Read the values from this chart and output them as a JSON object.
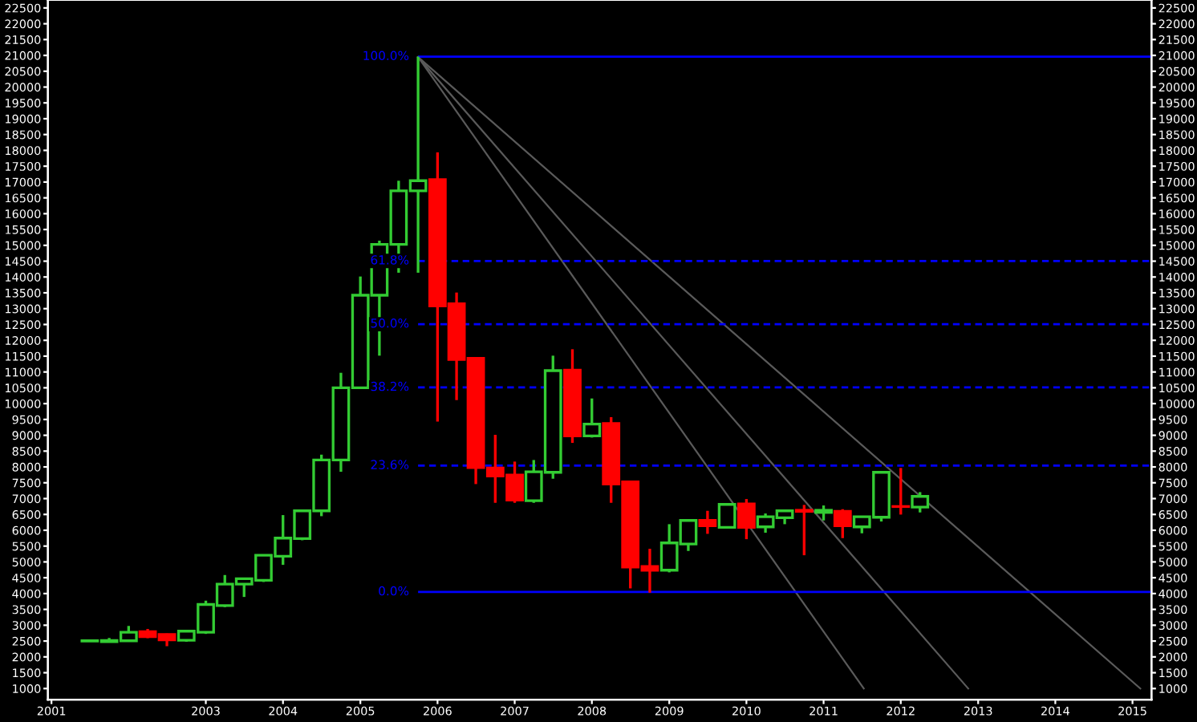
{
  "chart_data": {
    "type": "candlestick",
    "x": [
      "2001-07",
      "2001-10",
      "2002-01",
      "2002-04",
      "2002-07",
      "2002-10",
      "2003-01",
      "2003-04",
      "2003-07",
      "2003-10",
      "2004-01",
      "2004-04",
      "2004-07",
      "2004-10",
      "2005-01",
      "2005-04",
      "2005-07",
      "2005-10",
      "2006-01",
      "2006-04",
      "2006-07",
      "2006-10",
      "2007-01",
      "2007-04",
      "2007-07",
      "2007-10",
      "2008-01",
      "2008-04",
      "2008-07",
      "2008-10",
      "2009-01",
      "2009-04",
      "2009-07",
      "2009-10",
      "2010-01",
      "2010-04",
      "2010-07",
      "2010-10",
      "2011-01",
      "2011-04",
      "2011-07",
      "2011-10",
      "2012-01",
      "2012-04"
    ],
    "ohlc": [
      [
        2500,
        2520,
        2490,
        2510
      ],
      [
        2480,
        2600,
        2470,
        2520
      ],
      [
        2508,
        2980,
        2500,
        2778
      ],
      [
        2795,
        2880,
        2590,
        2642
      ],
      [
        2710,
        2740,
        2340,
        2540
      ],
      [
        2525,
        2845,
        2475,
        2812
      ],
      [
        2778,
        3775,
        2727,
        3656
      ],
      [
        3622,
        4586,
        3572,
        4299
      ],
      [
        4299,
        4501,
        3893,
        4468
      ],
      [
        4417,
        5211,
        4366,
        5211
      ],
      [
        5177,
        6479,
        4907,
        5752
      ],
      [
        5735,
        6614,
        5684,
        6614
      ],
      [
        6614,
        8388,
        6445,
        8219
      ],
      [
        8219,
        10974,
        7847,
        10501
      ],
      [
        10501,
        14016,
        10501,
        13424
      ],
      [
        13424,
        15148,
        11515,
        15030
      ],
      [
        15030,
        17041,
        14135,
        16720
      ],
      [
        16720,
        20962,
        14135,
        17041
      ],
      [
        17075,
        17937,
        9436,
        13087
      ],
      [
        13154,
        13509,
        10112,
        11397
      ],
      [
        11430,
        11430,
        7459,
        7983
      ],
      [
        7966,
        9014,
        6867,
        7712
      ],
      [
        7746,
        8169,
        6867,
        6952
      ],
      [
        6935,
        8219,
        6867,
        7847
      ],
      [
        7830,
        11515,
        7628,
        11042
      ],
      [
        11059,
        11718,
        8760,
        8980
      ],
      [
        8980,
        10163,
        8929,
        9352
      ],
      [
        9369,
        9572,
        6867,
        7459
      ],
      [
        7527,
        7527,
        4164,
        4840
      ],
      [
        4857,
        5414,
        4028,
        4738
      ],
      [
        4738,
        6192,
        4671,
        5600
      ],
      [
        5566,
        6327,
        5346,
        6310
      ],
      [
        6310,
        6614,
        5887,
        6141
      ],
      [
        6090,
        6817,
        6090,
        6817
      ],
      [
        6834,
        6986,
        5718,
        6090
      ],
      [
        6107,
        6530,
        5921,
        6428
      ],
      [
        6394,
        6614,
        6192,
        6614
      ],
      [
        6631,
        6800,
        5211,
        6597
      ],
      [
        6563,
        6783,
        6310,
        6631
      ],
      [
        6597,
        6665,
        5752,
        6141
      ],
      [
        6107,
        6428,
        5904,
        6428
      ],
      [
        6411,
        7831,
        6276,
        7831
      ],
      [
        6749,
        7966,
        6496,
        6749
      ],
      [
        6732,
        7205,
        6563,
        7070
      ]
    ],
    "colors": [
      "#33cc33",
      "#33cc33",
      "#33cc33",
      "#ff0000",
      "#ff0000",
      "#33cc33",
      "#33cc33",
      "#33cc33",
      "#33cc33",
      "#33cc33",
      "#33cc33",
      "#33cc33",
      "#33cc33",
      "#33cc33",
      "#33cc33",
      "#33cc33",
      "#33cc33",
      "#33cc33",
      "#ff0000",
      "#ff0000",
      "#ff0000",
      "#ff0000",
      "#ff0000",
      "#33cc33",
      "#33cc33",
      "#ff0000",
      "#33cc33",
      "#ff0000",
      "#ff0000",
      "#ff0000",
      "#33cc33",
      "#33cc33",
      "#ff0000",
      "#33cc33",
      "#ff0000",
      "#33cc33",
      "#33cc33",
      "#ff0000",
      "#33cc33",
      "#ff0000",
      "#33cc33",
      "#33cc33",
      "#ff0000",
      "#33cc33"
    ],
    "series": [
      {
        "type": "line",
        "color": "#5a5a5a",
        "x": [
          "2005-10",
          "2011-07-10"
        ],
        "values": [
          20950,
          1000
        ]
      },
      {
        "type": "line",
        "color": "#5a5a5a",
        "x": [
          "2005-10",
          "2012-11-15"
        ],
        "values": [
          20950,
          1000
        ]
      },
      {
        "type": "line",
        "color": "#5a5a5a",
        "x": [
          "2005-10",
          "2015-02-07"
        ],
        "values": [
          20950,
          1000
        ]
      }
    ],
    "ref_lines": [
      {
        "axis": "y",
        "value": 20962,
        "color": "#0000ff",
        "line_style": "solid"
      },
      {
        "axis": "y",
        "value": 14507,
        "color": "#0000ff",
        "line_style": "dashed"
      },
      {
        "axis": "y",
        "value": 12510,
        "color": "#0000ff",
        "line_style": "dashed"
      },
      {
        "axis": "y",
        "value": 10513,
        "color": "#0000ff",
        "line_style": "dashed"
      },
      {
        "axis": "y",
        "value": 8040,
        "color": "#0000ff",
        "line_style": "dashed"
      },
      {
        "axis": "y",
        "value": 4050,
        "color": "#0000ff",
        "line_style": "solid"
      }
    ],
    "annotations": [
      {
        "text": "100.0%",
        "x": "2005-10",
        "y": 20962
      },
      {
        "text": "61.8%",
        "x": "2005-10",
        "y": 14507
      },
      {
        "text": "50.0%",
        "x": "2005-10",
        "y": 12510
      },
      {
        "text": "38.2%",
        "x": "2005-10",
        "y": 10513
      },
      {
        "text": "23.6%",
        "x": "2005-10",
        "y": 8040
      },
      {
        "text": "0.0%",
        "x": "2005-10",
        "y": 4050
      }
    ],
    "xlim": [
      "2000-12-15",
      "2015-04-01"
    ],
    "xticks": [
      "2001",
      "2003",
      "2004",
      "2005",
      "2006",
      "2007",
      "2008",
      "2009",
      "2010",
      "2011",
      "2012",
      "2013",
      "2014",
      "2015"
    ],
    "ylim": [
      650,
      22750
    ],
    "yticks": [
      1000,
      1500,
      2000,
      2500,
      3000,
      3500,
      4000,
      4500,
      5000,
      5500,
      6000,
      6500,
      7000,
      7500,
      8000,
      8500,
      9000,
      9500,
      10000,
      10500,
      11000,
      11500,
      12000,
      12500,
      13000,
      13500,
      14000,
      14500,
      15000,
      15500,
      16000,
      16500,
      17000,
      17500,
      18000,
      18500,
      19000,
      19500,
      20000,
      20500,
      21000,
      21500,
      22000,
      22500
    ],
    "y2lim": [
      650,
      22750
    ],
    "y2ticks": [
      1000,
      1500,
      2000,
      2500,
      3000,
      3500,
      4000,
      4500,
      5000,
      5500,
      6000,
      6500,
      7000,
      7500,
      8000,
      8500,
      9000,
      9500,
      10000,
      10500,
      11000,
      11500,
      12000,
      12500,
      13000,
      13500,
      14000,
      14500,
      15000,
      15500,
      16000,
      16500,
      17000,
      17500,
      18000,
      18500,
      19000,
      19500,
      20000,
      20500,
      21000,
      21500,
      22000,
      22500
    ],
    "grid": false,
    "legend": false
  }
}
